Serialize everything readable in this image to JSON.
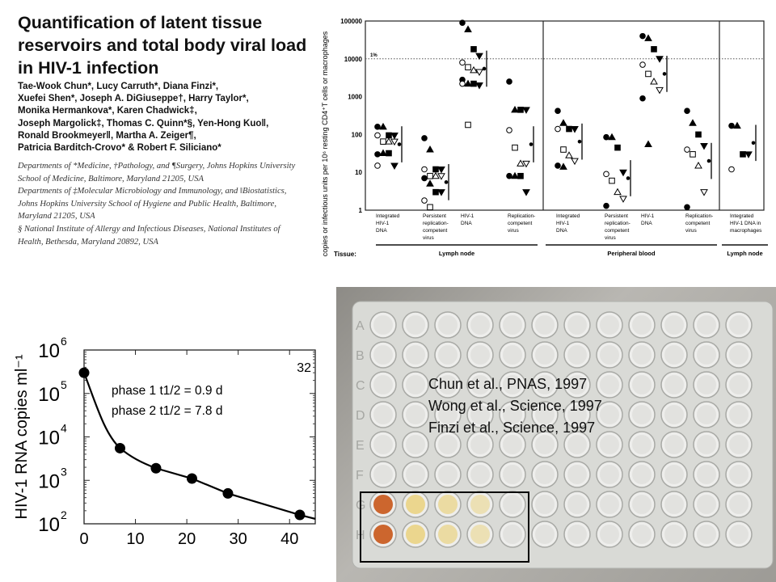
{
  "paper": {
    "title": "Quantification of latent tissue reservoirs and total body viral load in HIV-1 infection",
    "authors": [
      "Tae-Wook Chun*, Lucy Carruth*, Diana Finzi*,",
      "Xuefei Shen*, Joseph A. DiGiuseppe†, Harry Taylor*,",
      "Monika Hermankova*, Karen Chadwick‡,",
      "Joseph Margolick‡, Thomas C. Quinn*§, Yen-Hong Kuo‖,",
      "Ronald Brookmeyer‖, Martha A. Zeiger¶,",
      "Patricia Barditch-Crovo* & Robert F. Siliciano*"
    ],
    "affiliations": [
      "Departments of *Medicine, †Pathology, and ¶Surgery, Johns Hopkins University",
      "School of Medicine, Baltimore, Maryland 21205, USA",
      "Departments of ‡Molecular Microbiology and Immunology, and ‖Biostatistics,",
      "Johns Hopkins University School of Hygiene and Public Health, Baltimore,",
      "Maryland 21205, USA",
      "§ National Institute of Allergy and Infectious Diseases, National Institutes of",
      "Health, Bethesda, Maryland 20892, USA"
    ]
  },
  "overlay": {
    "citations": [
      "Chun et al., PNAS, 1997",
      "Wong et al., Science, 1997",
      "Finzi et  al., Science, 1997"
    ]
  },
  "plate": {
    "rows": [
      "A",
      "B",
      "C",
      "D",
      "E",
      "F",
      "G",
      "H"
    ],
    "colors": {
      "orange": "#c8561a",
      "yellow": "#e8c44a",
      "clear": "#d8d9d6"
    }
  },
  "chart_data": [
    {
      "type": "scatter",
      "title": "",
      "ylabel": "copies or infectious units per 10⁶ resting CD4⁺T cells or macrophages",
      "yscale": "log",
      "ylim": [
        1,
        100000
      ],
      "yticks": [
        "100000",
        "10000",
        "1000",
        "100",
        "10",
        "1"
      ],
      "reference_line": {
        "value": 10000,
        "label": "1%"
      },
      "tissue_label": "Tissue:",
      "groups": [
        {
          "tissue": "Lymph node",
          "categories": [
            {
              "label": [
                "Integrated",
                "HIV-1",
                "DNA"
              ],
              "values": [
                160,
                160,
                95,
                95,
                95,
                65,
                65,
                65,
                30,
                32,
                32,
                15,
                15
              ],
              "mean": 55
            },
            {
              "label": [
                "Persistent",
                "replication-",
                "competent",
                "virus"
              ],
              "values": [
                80,
                40,
                12,
                12,
                12,
                8,
                8,
                8,
                7,
                5,
                3,
                3,
                1.8,
                1.2
              ],
              "mean": 5.5
            },
            {
              "label": [
                "HIV-1",
                "DNA"
              ],
              "values": [
                90000,
                60000,
                18000,
                12000,
                8000,
                6000,
                5000,
                4500,
                2800,
                2200,
                2200,
                2000,
                2200,
                180
              ],
              "mean": 5500
            },
            {
              "label": [
                "Replication-",
                "competent",
                "virus"
              ],
              "values": [
                2500,
                450,
                450,
                450,
                130,
                45,
                17,
                17,
                8,
                8,
                8,
                3
              ],
              "mean": 55
            }
          ]
        },
        {
          "tissue": "Peripheral blood",
          "categories": [
            {
              "label": [
                "Integrated",
                "HIV-1",
                "DNA"
              ],
              "values": [
                420,
                200,
                140,
                140,
                140,
                40,
                28,
                20,
                15,
                14
              ],
              "mean": 65
            },
            {
              "label": [
                "Persistent",
                "replication-",
                "competent",
                "virus"
              ],
              "values": [
                85,
                85,
                45,
                10,
                9,
                6,
                3,
                2,
                1.3
              ],
              "mean": 7
            },
            {
              "label": [
                "HIV-1",
                "DNA"
              ],
              "values": [
                40000,
                35000,
                18000,
                10000,
                7000,
                4000,
                2500,
                1500,
                900,
                55
              ],
              "mean": 4000
            },
            {
              "label": [
                "Replication-",
                "competent",
                "virus"
              ],
              "values": [
                420,
                200,
                100,
                50,
                40,
                30,
                15,
                3,
                1.2
              ],
              "mean": 20
            }
          ]
        },
        {
          "tissue": "Lymph node",
          "categories": [
            {
              "label": [
                "Integrated",
                "HIV-1 DNA in",
                "macrophages"
              ],
              "values": [
                170,
                170,
                30,
                30,
                12
              ],
              "mean": 60
            }
          ]
        }
      ]
    },
    {
      "type": "line",
      "xlabel": "",
      "ylabel": "HIV-1 RNA copies ml⁻¹",
      "yscale": "log",
      "ylim": [
        100,
        1000000
      ],
      "xlim": [
        0,
        45
      ],
      "xticks": [
        "0",
        "10",
        "20",
        "30",
        "40"
      ],
      "yticks": [
        "10",
        "10",
        "10",
        "10",
        "10"
      ],
      "ytick_exps": [
        "6",
        "5",
        "4",
        "3",
        "2"
      ],
      "panel_label": "32",
      "annotations": [
        "phase 1 t1/2 = 0.9 d",
        "phase 2 t1/2 = 7.8 d"
      ],
      "x": [
        0,
        7,
        14,
        21,
        28,
        42
      ],
      "y": [
        300000,
        5500,
        1900,
        1100,
        500,
        160
      ]
    }
  ]
}
